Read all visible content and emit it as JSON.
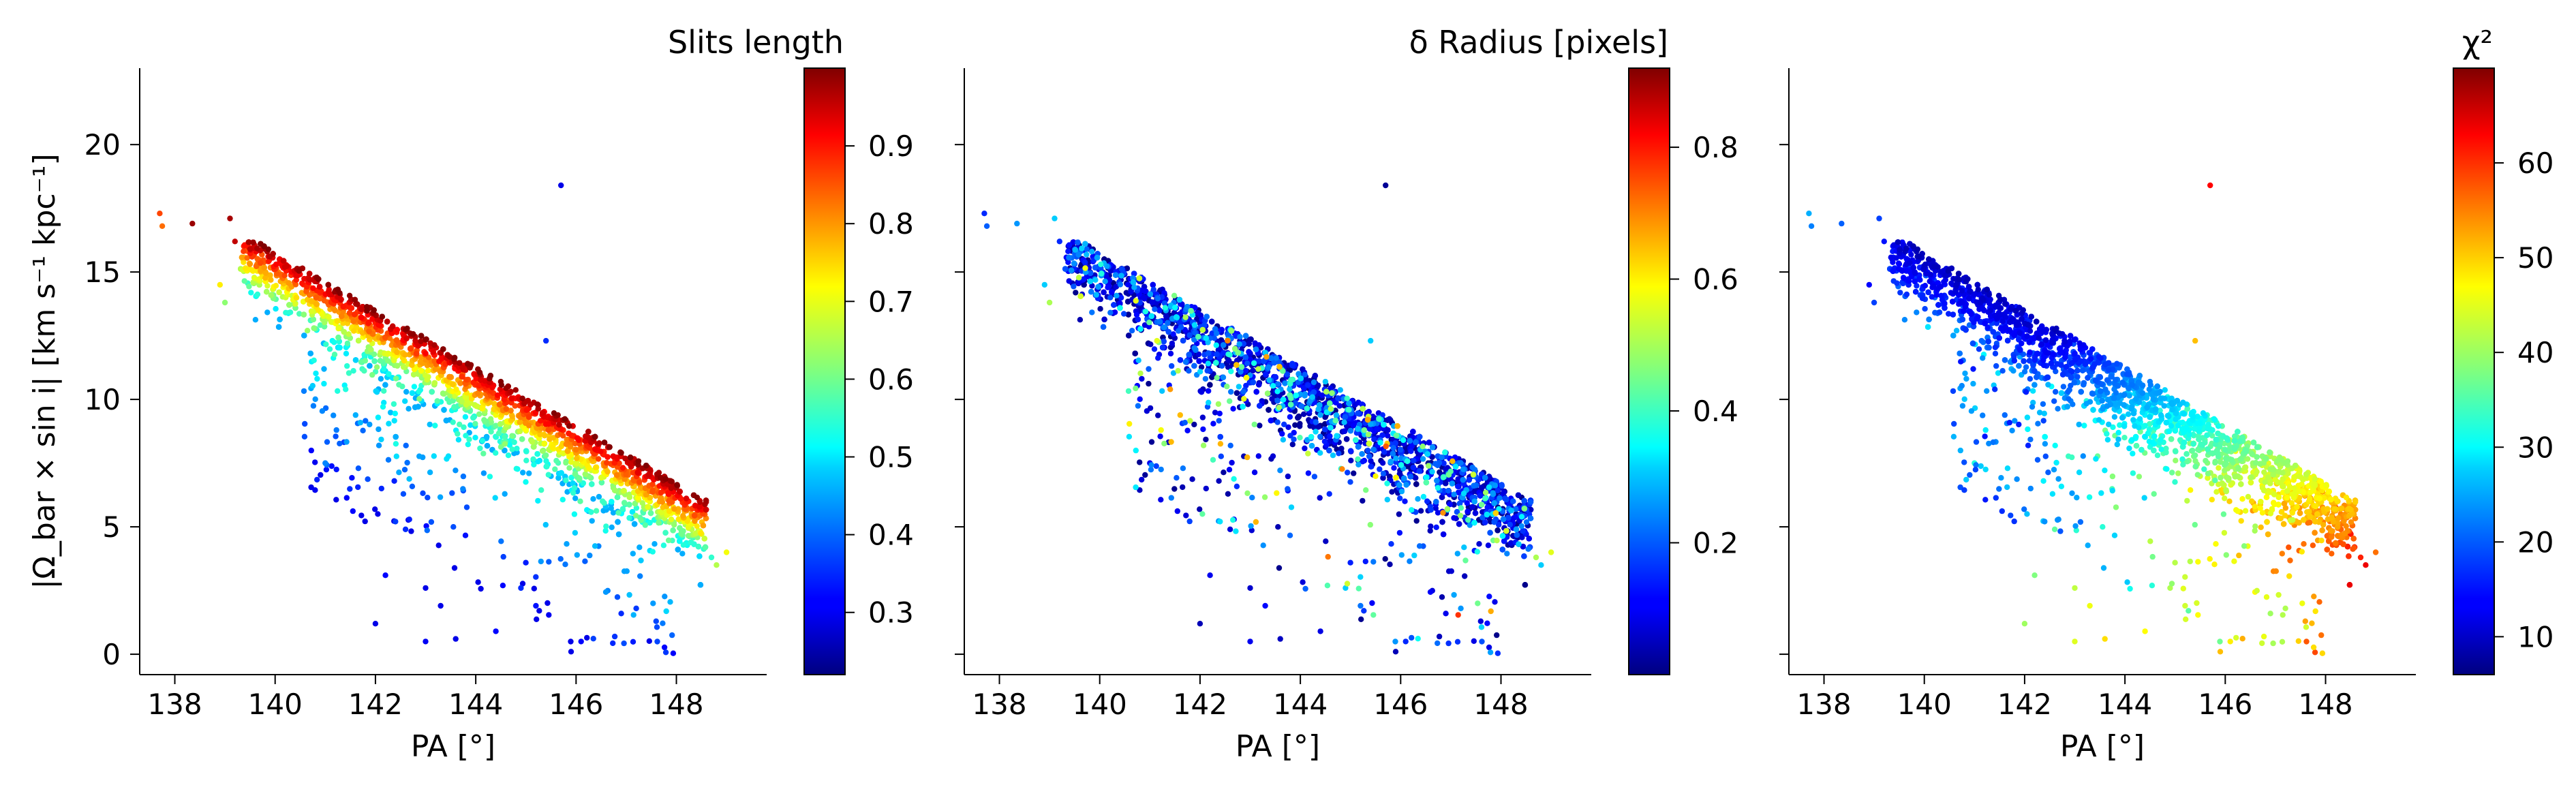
{
  "chart_data": [
    {
      "type": "scatter",
      "panel": "a",
      "xlabel": "PA [°]",
      "ylabel": "|Ω_bar × sin i|  [km s⁻¹ kpc⁻¹]",
      "xlim": [
        137.3,
        149.8
      ],
      "ylim": [
        -0.8,
        23
      ],
      "xticks": [
        138,
        140,
        142,
        144,
        146,
        148
      ],
      "yticks": [
        0,
        5,
        10,
        15,
        20
      ],
      "colorbar": {
        "label": "Slits length",
        "cmap": "jet",
        "range": [
          0.22,
          1.0
        ],
        "ticks": [
          "0.3",
          "0.4",
          "0.5",
          "0.6",
          "0.7",
          "0.8",
          "0.9"
        ],
        "tick_values": [
          0.3,
          0.4,
          0.5,
          0.6,
          0.7,
          0.8,
          0.9
        ]
      },
      "color_mode": "slits",
      "grid": false
    },
    {
      "type": "scatter",
      "panel": "b",
      "xlabel": "PA [°]",
      "ylabel": "",
      "xlim": [
        137.3,
        149.8
      ],
      "ylim": [
        -0.8,
        23
      ],
      "xticks": [
        138,
        140,
        142,
        144,
        146,
        148
      ],
      "yticks": [
        0,
        5,
        10,
        15,
        20
      ],
      "colorbar": {
        "label": "δ Radius [pixels]",
        "cmap": "jet",
        "range": [
          0.0,
          0.92
        ],
        "ticks": [
          "0.2",
          "0.4",
          "0.6",
          "0.8"
        ],
        "tick_values": [
          0.2,
          0.4,
          0.6,
          0.8
        ]
      },
      "color_mode": "dradius",
      "grid": false
    },
    {
      "type": "scatter",
      "panel": "c",
      "xlabel": "PA [°]",
      "ylabel": "",
      "xlim": [
        137.3,
        149.8
      ],
      "ylim": [
        -0.8,
        23
      ],
      "xticks": [
        138,
        140,
        142,
        144,
        146,
        148
      ],
      "yticks": [
        0,
        5,
        10,
        15,
        20
      ],
      "colorbar": {
        "label": "χ²",
        "cmap": "jet",
        "range": [
          6,
          70
        ],
        "ticks": [
          "10",
          "20",
          "30",
          "40",
          "50",
          "60"
        ],
        "tick_values": [
          10,
          20,
          30,
          40,
          50,
          60
        ]
      },
      "color_mode": "chi2",
      "grid": false
    }
  ],
  "points": [
    [
      137.7,
      17.3,
      0.85,
      0.15,
      25
    ],
    [
      137.75,
      16.8,
      0.82,
      0.2,
      22
    ],
    [
      138.35,
      16.9,
      0.98,
      0.25,
      20
    ],
    [
      139.1,
      17.1,
      0.97,
      0.3,
      18
    ],
    [
      139.2,
      16.2,
      0.95,
      0.15,
      15
    ],
    [
      139.5,
      15.9,
      0.95,
      0.12,
      14
    ],
    [
      138.9,
      14.5,
      0.72,
      0.3,
      14
    ],
    [
      139.0,
      13.8,
      0.62,
      0.5,
      18
    ],
    [
      141.0,
      7.5,
      0.42,
      0.1,
      32
    ],
    [
      142.0,
      1.2,
      0.3,
      0.05,
      40
    ],
    [
      142.2,
      3.1,
      0.32,
      0.1,
      38
    ],
    [
      142.6,
      4.9,
      0.35,
      0.08,
      36
    ],
    [
      143.0,
      2.6,
      0.3,
      0.07,
      42
    ],
    [
      143.3,
      1.9,
      0.3,
      0.12,
      45
    ],
    [
      143.6,
      0.6,
      0.3,
      0.06,
      48
    ],
    [
      143.0,
      0.5,
      0.31,
      0.1,
      44
    ],
    [
      144.4,
      0.9,
      0.32,
      0.09,
      46
    ],
    [
      144.9,
      2.6,
      0.35,
      0.3,
      41
    ],
    [
      145.2,
      1.9,
      0.33,
      0.22,
      43
    ],
    [
      145.9,
      0.1,
      0.3,
      0.05,
      50
    ],
    [
      146.1,
      0.5,
      0.32,
      0.15,
      47
    ],
    [
      146.9,
      1.6,
      0.35,
      0.1,
      40
    ],
    [
      147.2,
      1.8,
      0.36,
      0.25,
      41
    ],
    [
      145.4,
      12.3,
      0.35,
      0.3,
      50
    ],
    [
      145.7,
      18.4,
      0.3,
      0.02,
      62
    ],
    [
      148.7,
      3.8,
      0.55,
      0.5,
      60
    ],
    [
      149.0,
      4.0,
      0.7,
      0.55,
      55
    ],
    [
      148.8,
      3.5,
      0.65,
      0.3,
      63
    ]
  ]
}
